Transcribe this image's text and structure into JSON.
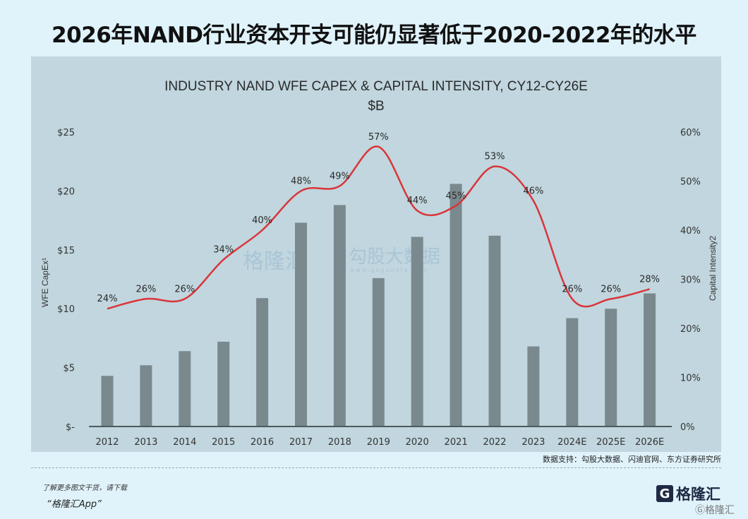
{
  "headline": "2026年NAND行业资本开支可能仍显著低于2020-2022年的水平",
  "chart_data": {
    "type": "bar+line",
    "title": "INDUSTRY NAND WFE CAPEX & CAPITAL INTENSITY, CY12-CY26E",
    "subtitle": "$B",
    "ylabel": "WFE CapEx¹",
    "y2label": "Capital Intensity2",
    "categories": [
      "2012",
      "2013",
      "2014",
      "2015",
      "2016",
      "2017",
      "2018",
      "2019",
      "2020",
      "2021",
      "2022",
      "2023",
      "2024E",
      "2025E",
      "2026E"
    ],
    "series": [
      {
        "type": "bar",
        "values": [
          4.3,
          5.2,
          6.4,
          7.2,
          10.9,
          17.3,
          18.8,
          12.6,
          16.1,
          20.6,
          16.2,
          6.8,
          9.2,
          10.0,
          11.3
        ],
        "color": "#7a898e"
      },
      {
        "type": "line",
        "values": [
          24,
          26,
          26,
          34,
          40,
          48,
          49,
          57,
          44,
          45,
          53,
          46,
          26,
          26,
          28
        ],
        "labels": [
          "24%",
          "26%",
          "26%",
          "34%",
          "40%",
          "48%",
          "49%",
          "57%",
          "44%",
          "45%",
          "53%",
          "46%",
          "26%",
          "26%",
          "28%"
        ],
        "color": "#d9353a",
        "axis": "right"
      }
    ],
    "ylim": [
      0,
      25
    ],
    "y2lim": [
      0,
      60
    ],
    "yticks": [
      "$-",
      "$5",
      "$10",
      "$15",
      "$20",
      "$25"
    ],
    "y2ticks": [
      "0%",
      "10%",
      "20%",
      "30%",
      "40%",
      "50%",
      "60%"
    ],
    "grid": false,
    "background": "#c1d6de"
  },
  "watermark": {
    "brand": "格隆汇",
    "brand2": "勾股大数据",
    "url": "www.gogudata.com"
  },
  "footer": {
    "source": "数据支持：勾股大数据、闪迪官网、东方证券研究所",
    "promo_line1": "了解更多图文干货，请下载",
    "promo_line2": "“格隆汇App”",
    "logo_text": "格隆汇",
    "logo_mark": "G",
    "watermark_small": "Ⓖ格隆汇"
  }
}
